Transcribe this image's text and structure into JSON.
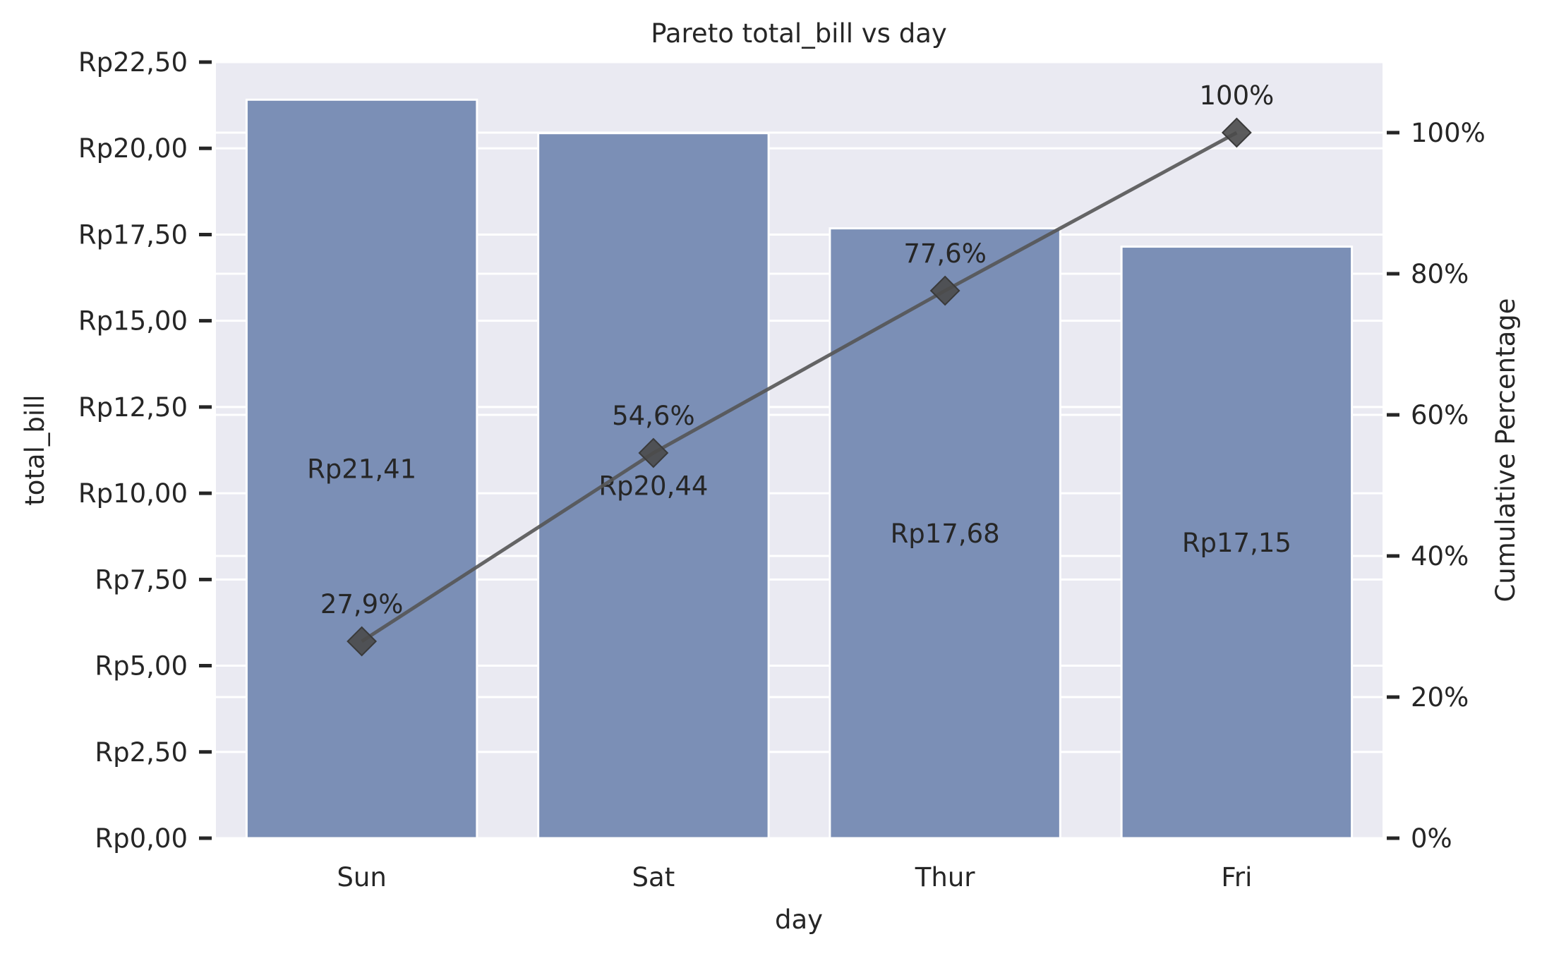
{
  "chart_data": {
    "type": "bar",
    "title": "Pareto total_bill vs day",
    "xlabel": "day",
    "ylabel": "total_bill",
    "y2label": "Cumulative Percentage",
    "categories": [
      "Sun",
      "Sat",
      "Thur",
      "Fri"
    ],
    "values": [
      21.41,
      20.44,
      17.68,
      17.15
    ],
    "value_labels": [
      "Rp21,41",
      "Rp20,44",
      "Rp17,68",
      "Rp17,15"
    ],
    "cumulative_percent": [
      27.9,
      54.6,
      77.6,
      100
    ],
    "cumulative_labels": [
      "27,9%",
      "54,6%",
      "77,6%",
      "100%"
    ],
    "ylim": [
      0,
      22.5
    ],
    "y_ticks": [
      0,
      2.5,
      5,
      7.5,
      10,
      12.5,
      15,
      17.5,
      20,
      22.5
    ],
    "y_tick_labels": [
      "Rp0,00",
      "Rp2,50",
      "Rp5,00",
      "Rp7,50",
      "Rp10,00",
      "Rp12,50",
      "Rp15,00",
      "Rp17,50",
      "Rp20,00",
      "Rp22,50"
    ],
    "y2lim": [
      0,
      110
    ],
    "y2_ticks": [
      0,
      20,
      40,
      60,
      80,
      100
    ],
    "y2_tick_labels": [
      "0%",
      "20%",
      "40%",
      "60%",
      "80%",
      "100%"
    ],
    "grid": true,
    "colors": {
      "background": "#eaeaf2",
      "bar": "#7b8fb6",
      "line": "#555555",
      "marker": "#4a4a4a",
      "grid": "#ffffff",
      "text": "#262626"
    }
  }
}
